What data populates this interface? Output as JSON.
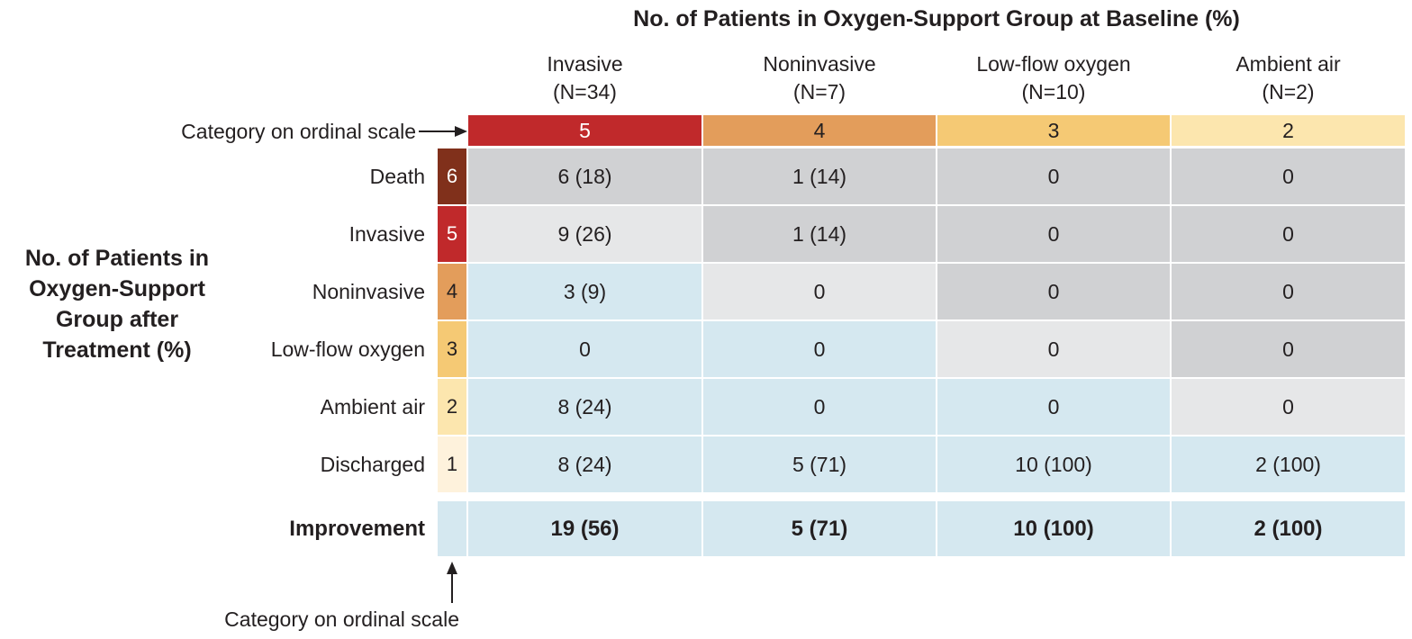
{
  "chart_data": {
    "type": "table",
    "title": "No. of Patients in Oxygen-Support Group at Baseline (%)",
    "row_axis_title": "No. of Patients in Oxygen-Support Group after Treatment (%)",
    "ordinal_scale_label": "Category on ordinal scale",
    "columns": [
      {
        "label": "Invasive",
        "n": "(N=34)",
        "category": "5",
        "color": "#c0292b",
        "text_color": "#ffffff"
      },
      {
        "label": "Noninvasive",
        "n": "(N=7)",
        "category": "4",
        "color": "#e39d5b",
        "text_color": "#231f20"
      },
      {
        "label": "Low-flow oxygen",
        "n": "(N=10)",
        "category": "3",
        "color": "#f5c974",
        "text_color": "#231f20"
      },
      {
        "label": "Ambient air",
        "n": "(N=2)",
        "category": "2",
        "color": "#fce6ae",
        "text_color": "#231f20"
      }
    ],
    "rows": [
      {
        "label": "Death",
        "category": "6",
        "color": "#80301b",
        "text_color": "#ffffff",
        "values": [
          "6 (18)",
          "1 (14)",
          "0",
          "0"
        ]
      },
      {
        "label": "Invasive",
        "category": "5",
        "color": "#c0292b",
        "text_color": "#ffffff",
        "values": [
          "9 (26)",
          "1 (14)",
          "0",
          "0"
        ]
      },
      {
        "label": "Noninvasive",
        "category": "4",
        "color": "#e39d5b",
        "text_color": "#231f20",
        "values": [
          "3 (9)",
          "0",
          "0",
          "0"
        ]
      },
      {
        "label": "Low-flow oxygen",
        "category": "3",
        "color": "#f5c974",
        "text_color": "#231f20",
        "values": [
          "0",
          "0",
          "0",
          "0"
        ]
      },
      {
        "label": "Ambient air",
        "category": "2",
        "color": "#fce6ae",
        "text_color": "#231f20",
        "values": [
          "8 (24)",
          "0",
          "0",
          "0"
        ]
      },
      {
        "label": "Discharged",
        "category": "1",
        "color": "#fef2dc",
        "text_color": "#231f20",
        "values": [
          "8 (24)",
          "5 (71)",
          "10 (100)",
          "2 (100)"
        ]
      }
    ],
    "improvement": {
      "label": "Improvement",
      "values": [
        "19 (56)",
        "5 (71)",
        "10 (100)",
        "2 (100)"
      ]
    },
    "cell_colors": {
      "worse": "#d0d1d3",
      "same": "#e6e7e8",
      "improved": "#d5e8f0"
    }
  }
}
